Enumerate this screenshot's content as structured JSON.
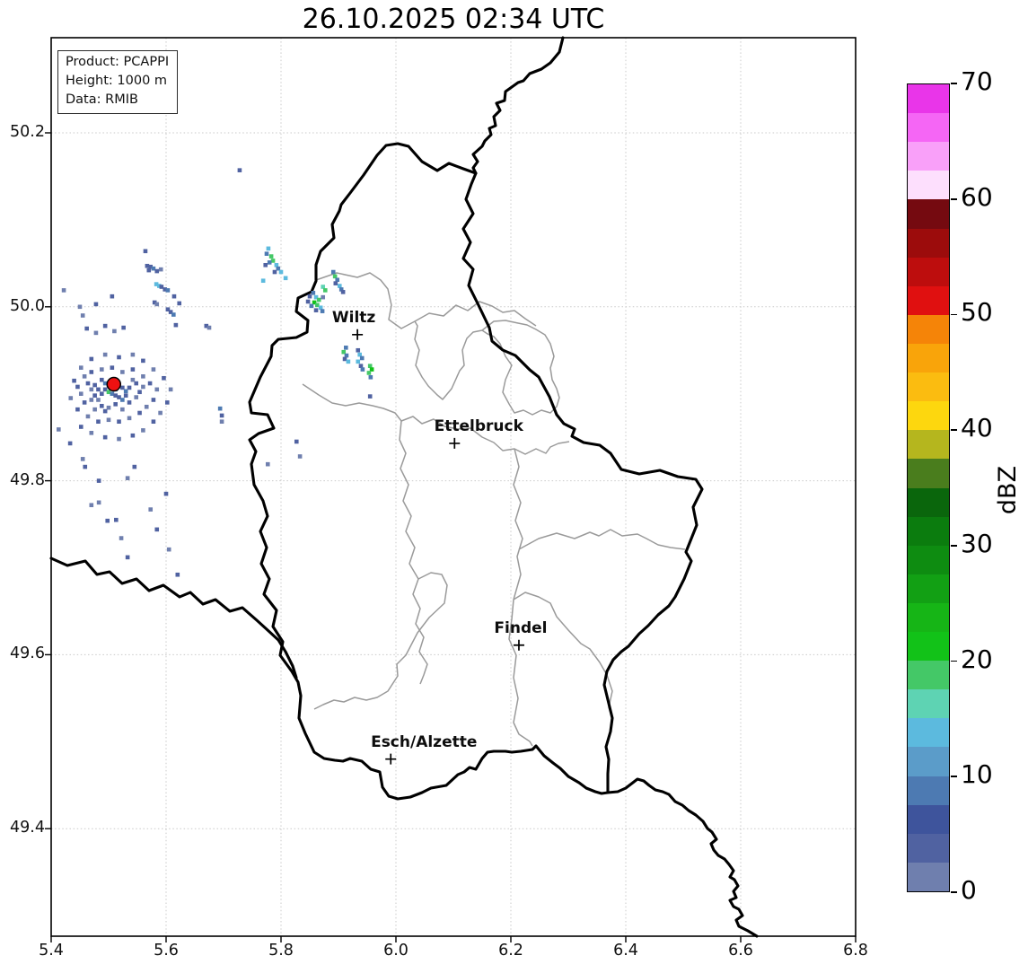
{
  "title": "26.10.2025 02:34 UTC",
  "info_box": {
    "lines": [
      "Product: PCAPPI",
      "Height: 1000 m",
      "Data: RMIB"
    ]
  },
  "axes": {
    "x_tick_labels": [
      "5.4",
      "5.6",
      "5.8",
      "6.0",
      "6.2",
      "6.4",
      "6.6",
      "6.8"
    ],
    "x_tick_values": [
      5.4,
      5.6,
      5.8,
      6.0,
      6.2,
      6.4,
      6.6,
      6.8
    ],
    "y_tick_labels": [
      "50.2",
      "50.0",
      "49.8",
      "49.6",
      "49.4"
    ],
    "y_tick_values": [
      50.2,
      50.0,
      49.8,
      49.6,
      49.4
    ]
  },
  "colorbar": {
    "label": "dBZ",
    "tick_values": [
      0,
      10,
      20,
      30,
      40,
      50,
      60,
      70
    ],
    "range": [
      0,
      70
    ],
    "segment_dbz_step": 2.5,
    "colors_bottom_to_top": [
      "#6f7fae",
      "#5062a1",
      "#3e549c",
      "#4d7ab2",
      "#5b9cc9",
      "#5cbade",
      "#5ed3b3",
      "#44c867",
      "#12c218",
      "#16b516",
      "#12a014",
      "#0e8c11",
      "#0b7c0e",
      "#0a660c",
      "#4a7d1d",
      "#b5b61e",
      "#fdd70e",
      "#fbbc10",
      "#f9a40a",
      "#f58408",
      "#e01010",
      "#bd0d0d",
      "#9c0c0c",
      "#750a10",
      "#fddffd",
      "#f9a0f9",
      "#f566f5",
      "#e935e9"
    ]
  },
  "chart_data": {
    "type": "radar-reflectivity-map",
    "timestamp_utc": "26.10.2025 02:34",
    "product": "PCAPPI",
    "height_m": 1000,
    "source": "RMIB",
    "lon_range": [
      5.4,
      6.8
    ],
    "lat_range": [
      49.28,
      50.31
    ],
    "units": "dBZ",
    "cities": [
      {
        "name": "Wiltz",
        "lon": 5.933,
        "lat": 49.968,
        "label_dx": -4
      },
      {
        "name": "Ettelbruck",
        "lon": 6.102,
        "lat": 49.843,
        "label_dx": 27
      },
      {
        "name": "Findel",
        "lon": 6.214,
        "lat": 49.611,
        "label_dx": 2
      },
      {
        "name": "Esch/Alzette",
        "lon": 5.991,
        "lat": 49.48,
        "label_dx": 37
      }
    ],
    "radar_site": {
      "lon": 5.509,
      "lat": 49.911,
      "color": "#ee1111"
    },
    "echo_colors": [
      "#6f7fae",
      "#5062a1",
      "#4d7ab2",
      "#5cbade",
      "#5ed3b3",
      "#44c867",
      "#12c218"
    ],
    "echo_color_dbz": [
      1,
      4,
      9,
      14,
      16,
      19,
      21
    ],
    "echoes": [
      [
        5.488,
        49.916,
        1
      ],
      [
        5.494,
        49.912,
        2
      ],
      [
        5.5,
        49.91,
        2
      ],
      [
        5.506,
        49.907,
        5
      ],
      [
        5.512,
        49.905,
        2
      ],
      [
        5.494,
        49.905,
        1
      ],
      [
        5.5,
        49.902,
        5
      ],
      [
        5.506,
        49.9,
        2
      ],
      [
        5.512,
        49.898,
        1
      ],
      [
        5.488,
        49.9,
        1
      ],
      [
        5.482,
        49.905,
        1
      ],
      [
        5.518,
        49.91,
        2
      ],
      [
        5.524,
        49.907,
        1
      ],
      [
        5.53,
        49.903,
        2
      ],
      [
        5.536,
        49.907,
        1
      ],
      [
        5.518,
        49.896,
        1
      ],
      [
        5.524,
        49.893,
        2
      ],
      [
        5.53,
        49.898,
        1
      ],
      [
        5.482,
        49.893,
        0
      ],
      [
        5.476,
        49.898,
        1
      ],
      [
        5.47,
        49.905,
        0
      ],
      [
        5.476,
        49.91,
        1
      ],
      [
        5.464,
        49.912,
        1
      ],
      [
        5.47,
        49.893,
        0
      ],
      [
        5.488,
        49.886,
        1
      ],
      [
        5.5,
        49.884,
        0
      ],
      [
        5.512,
        49.888,
        1
      ],
      [
        5.524,
        49.882,
        0
      ],
      [
        5.536,
        49.89,
        1
      ],
      [
        5.548,
        49.896,
        0
      ],
      [
        5.554,
        49.902,
        1
      ],
      [
        5.56,
        49.908,
        0
      ],
      [
        5.548,
        49.912,
        1
      ],
      [
        5.542,
        49.916,
        0
      ],
      [
        5.494,
        49.88,
        1
      ],
      [
        5.476,
        49.882,
        0
      ],
      [
        5.458,
        49.89,
        1
      ],
      [
        5.452,
        49.9,
        0
      ],
      [
        5.446,
        49.908,
        1
      ],
      [
        5.458,
        49.92,
        0
      ],
      [
        5.47,
        49.925,
        1
      ],
      [
        5.488,
        49.928,
        0
      ],
      [
        5.506,
        49.93,
        1
      ],
      [
        5.524,
        49.925,
        0
      ],
      [
        5.542,
        49.928,
        1
      ],
      [
        5.56,
        49.92,
        0
      ],
      [
        5.572,
        49.912,
        1
      ],
      [
        5.584,
        49.905,
        0
      ],
      [
        5.578,
        49.893,
        1
      ],
      [
        5.566,
        49.885,
        0
      ],
      [
        5.554,
        49.878,
        1
      ],
      [
        5.536,
        49.872,
        0
      ],
      [
        5.518,
        49.868,
        1
      ],
      [
        5.5,
        49.87,
        0
      ],
      [
        5.482,
        49.868,
        1
      ],
      [
        5.464,
        49.874,
        0
      ],
      [
        5.446,
        49.882,
        1
      ],
      [
        5.434,
        49.895,
        0
      ],
      [
        5.44,
        49.915,
        1
      ],
      [
        5.452,
        49.93,
        0
      ],
      [
        5.47,
        49.94,
        1
      ],
      [
        5.494,
        49.945,
        0
      ],
      [
        5.518,
        49.942,
        1
      ],
      [
        5.542,
        49.945,
        0
      ],
      [
        5.56,
        49.938,
        1
      ],
      [
        5.578,
        49.928,
        0
      ],
      [
        5.596,
        49.918,
        1
      ],
      [
        5.608,
        49.905,
        0
      ],
      [
        5.602,
        49.89,
        1
      ],
      [
        5.59,
        49.878,
        0
      ],
      [
        5.578,
        49.868,
        1
      ],
      [
        5.56,
        49.858,
        0
      ],
      [
        5.542,
        49.852,
        1
      ],
      [
        5.518,
        49.848,
        0
      ],
      [
        5.494,
        49.85,
        1
      ],
      [
        5.47,
        49.855,
        0
      ],
      [
        5.452,
        49.862,
        1
      ],
      [
        5.462,
        49.975,
        1
      ],
      [
        5.478,
        49.97,
        0
      ],
      [
        5.494,
        49.978,
        1
      ],
      [
        5.51,
        49.972,
        0
      ],
      [
        5.526,
        49.976,
        1
      ],
      [
        5.455,
        49.99,
        0
      ],
      [
        5.564,
        50.064,
        1
      ],
      [
        5.567,
        50.047,
        1
      ],
      [
        5.573,
        50.046,
        1
      ],
      [
        5.578,
        50.044,
        2
      ],
      [
        5.57,
        50.042,
        1
      ],
      [
        5.584,
        50.041,
        1
      ],
      [
        5.591,
        50.043,
        0
      ],
      [
        5.583,
        50.026,
        3
      ],
      [
        5.588,
        50.024,
        3
      ],
      [
        5.592,
        50.023,
        1
      ],
      [
        5.598,
        50.02,
        1
      ],
      [
        5.603,
        50.019,
        2
      ],
      [
        5.614,
        50.012,
        1
      ],
      [
        5.623,
        50.004,
        1
      ],
      [
        5.58,
        50.005,
        1
      ],
      [
        5.584,
        50.003,
        0
      ],
      [
        5.603,
        49.997,
        1
      ],
      [
        5.608,
        49.994,
        1
      ],
      [
        5.613,
        49.991,
        2
      ],
      [
        5.617,
        49.979,
        1
      ],
      [
        5.67,
        49.978,
        1
      ],
      [
        5.675,
        49.976,
        0
      ],
      [
        5.422,
        50.019,
        0
      ],
      [
        5.506,
        50.012,
        1
      ],
      [
        5.45,
        50.0,
        0
      ],
      [
        5.478,
        50.003,
        1
      ],
      [
        5.728,
        50.157,
        1
      ],
      [
        5.413,
        49.859,
        0
      ],
      [
        5.433,
        49.843,
        1
      ],
      [
        5.455,
        49.825,
        0
      ],
      [
        5.483,
        49.8,
        1
      ],
      [
        5.459,
        49.816,
        1
      ],
      [
        5.545,
        49.816,
        1
      ],
      [
        5.533,
        49.803,
        0
      ],
      [
        5.6,
        49.785,
        1
      ],
      [
        5.573,
        49.767,
        0
      ],
      [
        5.584,
        49.744,
        1
      ],
      [
        5.605,
        49.721,
        0
      ],
      [
        5.62,
        49.692,
        1
      ],
      [
        5.522,
        49.734,
        0
      ],
      [
        5.498,
        49.754,
        1
      ],
      [
        5.483,
        49.775,
        0
      ],
      [
        5.47,
        49.772,
        0
      ],
      [
        5.513,
        49.755,
        1
      ],
      [
        5.533,
        49.712,
        1
      ],
      [
        5.694,
        49.883,
        2
      ],
      [
        5.697,
        49.875,
        1
      ],
      [
        5.697,
        49.868,
        0
      ],
      [
        5.827,
        49.845,
        1
      ],
      [
        5.777,
        49.819,
        0
      ],
      [
        5.833,
        49.828,
        0
      ],
      [
        5.778,
        50.067,
        3
      ],
      [
        5.775,
        50.061,
        2
      ],
      [
        5.783,
        50.058,
        5
      ],
      [
        5.786,
        50.053,
        5
      ],
      [
        5.78,
        50.051,
        2
      ],
      [
        5.792,
        50.048,
        3
      ],
      [
        5.795,
        50.044,
        2
      ],
      [
        5.8,
        50.04,
        3
      ],
      [
        5.789,
        50.04,
        1
      ],
      [
        5.773,
        50.048,
        1
      ],
      [
        5.769,
        50.03,
        3
      ],
      [
        5.808,
        50.033,
        3
      ],
      [
        5.891,
        50.04,
        2
      ],
      [
        5.894,
        50.035,
        5
      ],
      [
        5.898,
        50.031,
        2
      ],
      [
        5.895,
        50.027,
        1
      ],
      [
        5.902,
        50.024,
        3
      ],
      [
        5.905,
        50.02,
        2
      ],
      [
        5.908,
        50.017,
        1
      ],
      [
        5.873,
        50.023,
        4
      ],
      [
        5.877,
        50.019,
        5
      ],
      [
        5.856,
        50.016,
        2
      ],
      [
        5.85,
        50.012,
        1
      ],
      [
        5.861,
        50.011,
        3
      ],
      [
        5.866,
        50.008,
        5
      ],
      [
        5.858,
        50.005,
        6
      ],
      [
        5.863,
        50.002,
        5
      ],
      [
        5.853,
        50.001,
        2
      ],
      [
        5.869,
        49.999,
        3
      ],
      [
        5.861,
        49.996,
        1
      ],
      [
        5.872,
        49.995,
        2
      ],
      [
        5.847,
        50.006,
        1
      ],
      [
        5.873,
        50.011,
        0
      ],
      [
        5.913,
        49.953,
        2
      ],
      [
        5.909,
        49.948,
        5
      ],
      [
        5.914,
        49.944,
        2
      ],
      [
        5.911,
        49.94,
        1
      ],
      [
        5.917,
        49.937,
        3
      ],
      [
        5.934,
        49.95,
        1
      ],
      [
        5.937,
        49.945,
        3
      ],
      [
        5.941,
        49.941,
        2
      ],
      [
        5.934,
        49.937,
        3
      ],
      [
        5.939,
        49.932,
        1
      ],
      [
        5.942,
        49.928,
        2
      ],
      [
        5.955,
        49.932,
        5
      ],
      [
        5.958,
        49.928,
        6
      ],
      [
        5.953,
        49.924,
        5
      ],
      [
        5.956,
        49.919,
        2
      ],
      [
        5.955,
        49.897,
        1
      ]
    ]
  }
}
